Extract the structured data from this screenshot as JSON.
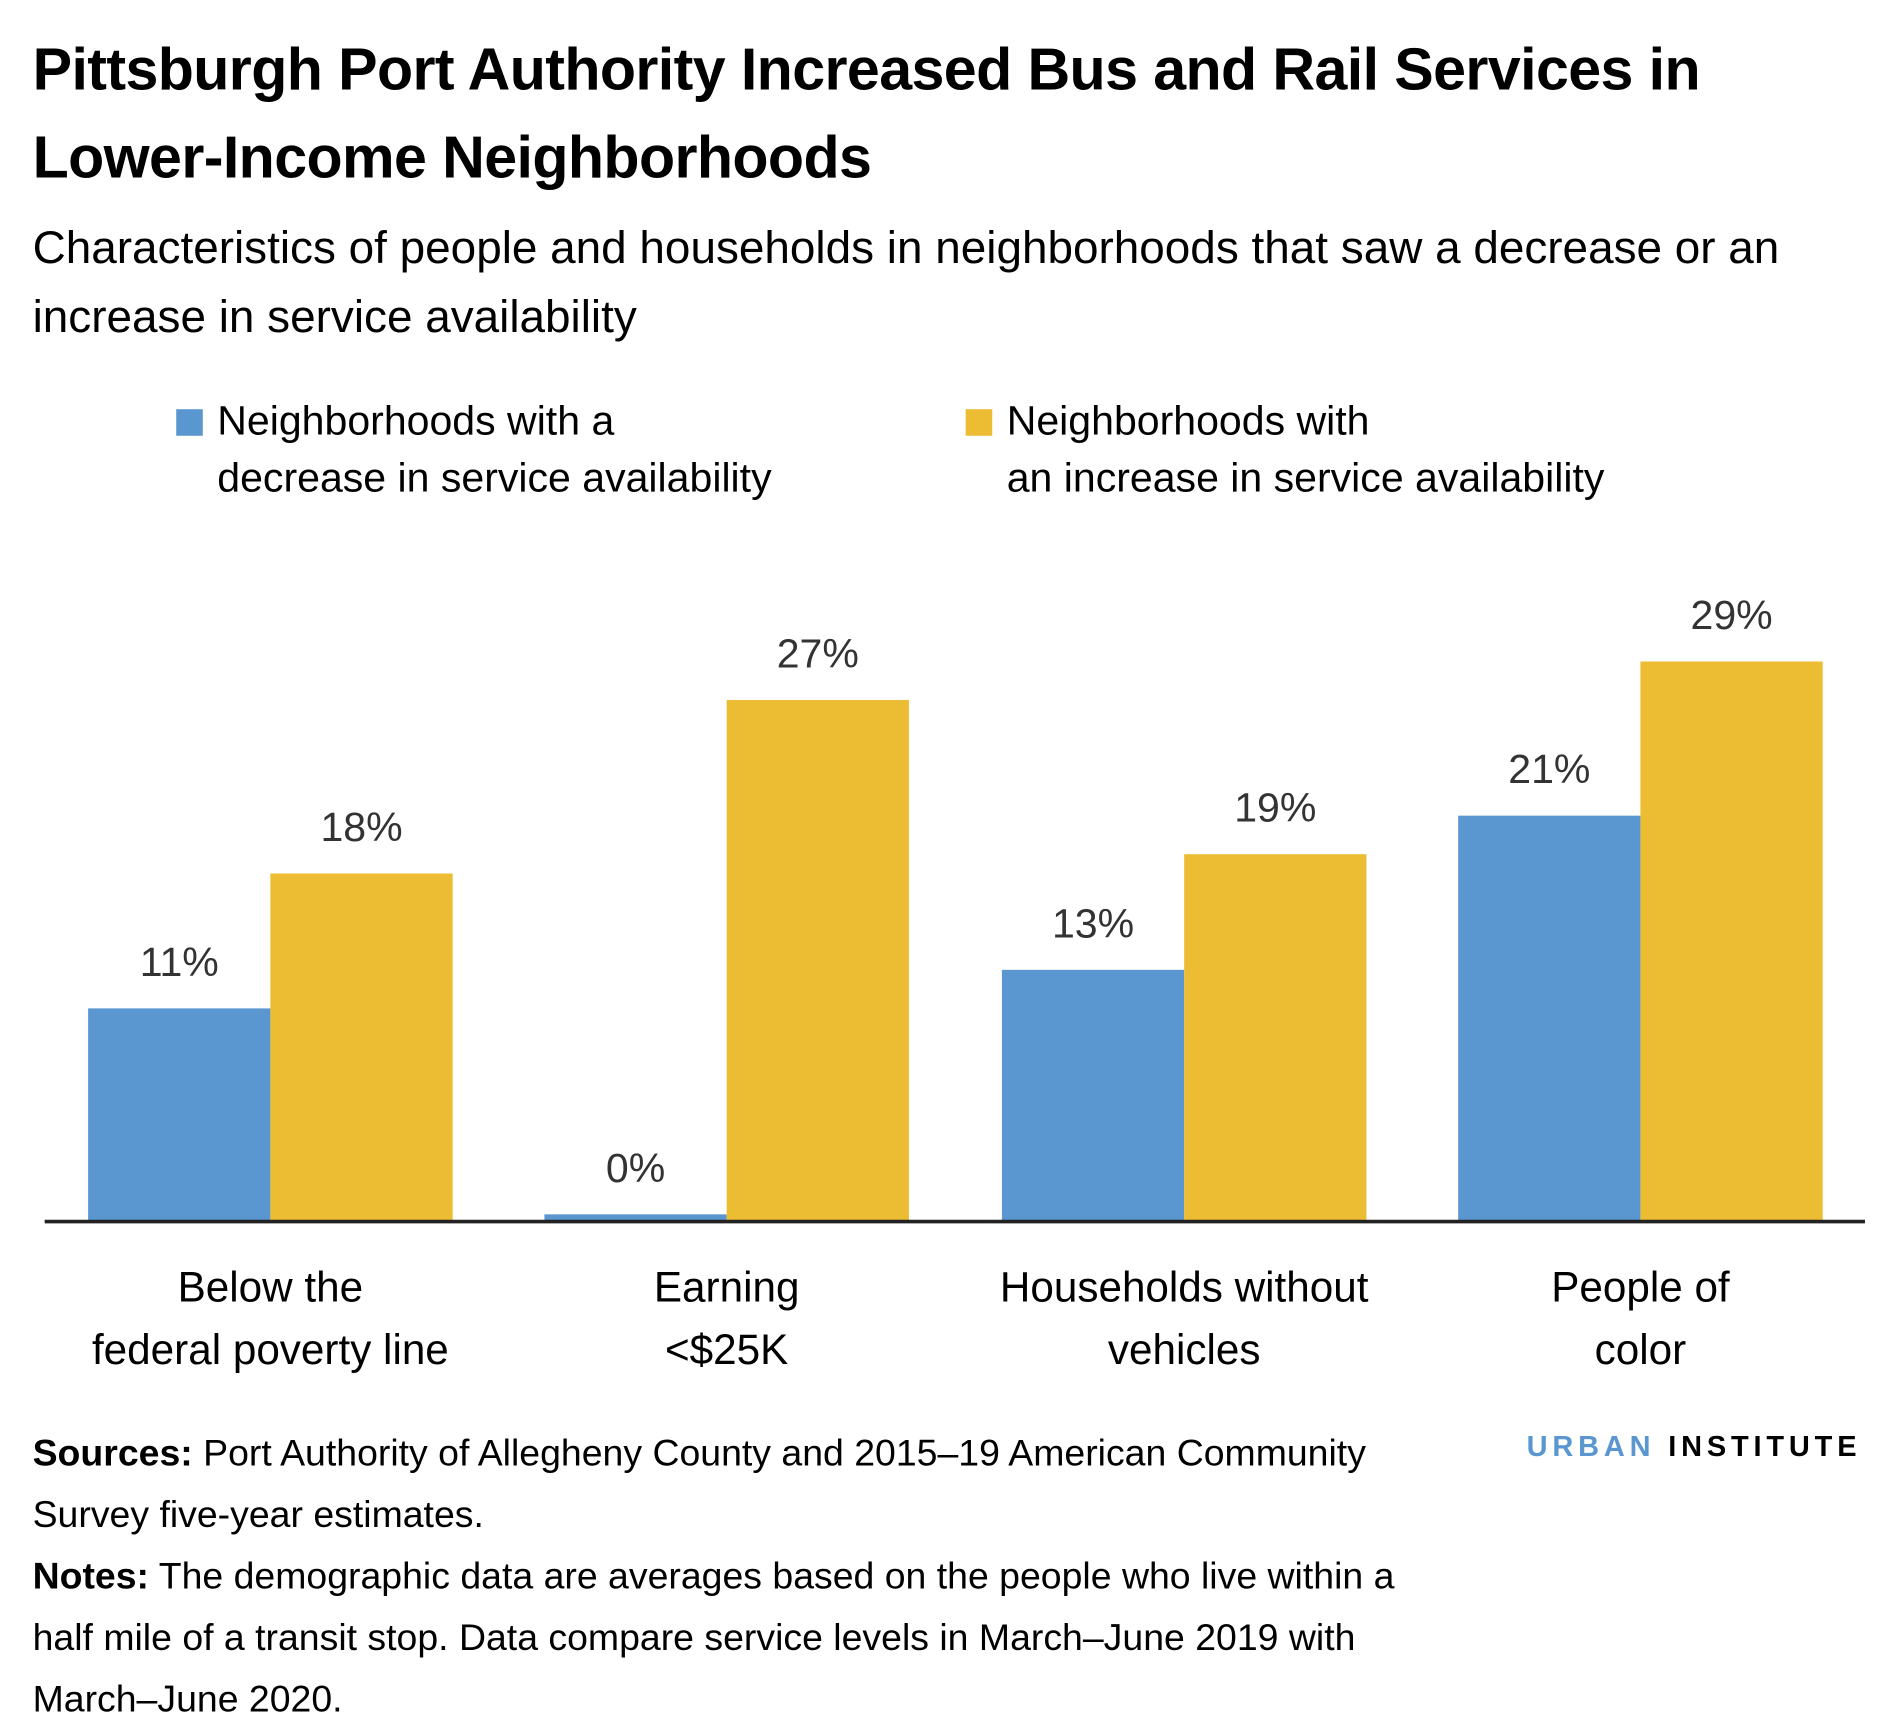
{
  "title": "Pittsburgh Port Authority Increased Bus and Rail Services in Lower-Income Neighborhoods",
  "subtitle": "Characteristics of people and households in neighborhoods that saw a decrease or an increase in service availability",
  "colors": {
    "decrease": "#5A96D0",
    "increase": "#ECBD32",
    "axis": "#222222",
    "value_label": "#333333"
  },
  "chart_data": {
    "type": "bar",
    "title": "Pittsburgh Port Authority Increased Bus and Rail Services in Lower-Income Neighborhoods",
    "categories": [
      [
        "Below the",
        "federal poverty line"
      ],
      [
        "Earning",
        "<$25K"
      ],
      [
        "Households without",
        "vehicles"
      ],
      [
        "People of",
        "color"
      ]
    ],
    "series": [
      {
        "name": "Neighborhoods with a decrease in service availability",
        "legend_lines": [
          "Neighborhoods with a",
          "decrease in service availability"
        ],
        "color": "#5A96D0",
        "values": [
          11,
          0,
          13,
          21
        ],
        "labels": [
          "11%",
          "0%",
          "13%",
          "21%"
        ]
      },
      {
        "name": "Neighborhoods with an increase in service availability",
        "legend_lines": [
          "Neighborhoods with",
          "an increase in service availability"
        ],
        "color": "#ECBD32",
        "values": [
          18,
          27,
          19,
          29
        ],
        "labels": [
          "18%",
          "27%",
          "19%",
          "29%"
        ]
      }
    ],
    "ylim": [
      0,
      29
    ],
    "grid": false,
    "legend": "top"
  },
  "notes": {
    "sources_label": "Sources:",
    "sources_text": " Port Authority of Allegheny County and 2015–19 American Community Survey five-year estimates.",
    "notes_label": "Notes:",
    "notes_text": " The demographic data are averages based on the people who live within a half mile of a transit stop. Data compare service levels in March–June 2019 with March–June 2020."
  },
  "logo": {
    "part1": "URBAN",
    "part2": "INSTITUTE"
  }
}
